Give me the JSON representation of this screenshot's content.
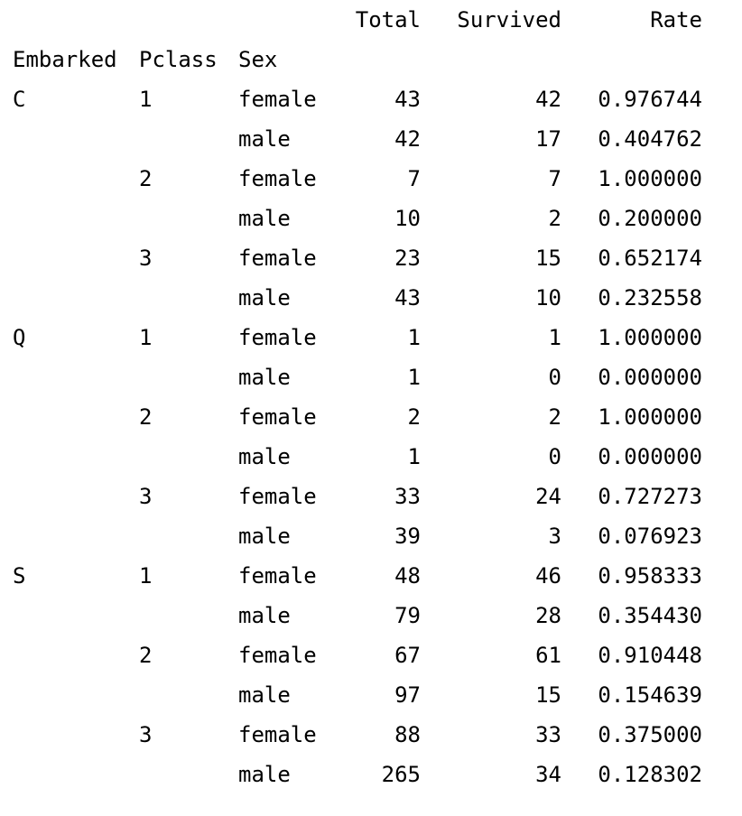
{
  "table": {
    "columns": [
      "Total",
      "Survived",
      "Rate"
    ],
    "index_names": [
      "Embarked",
      "Pclass",
      "Sex"
    ],
    "rows": [
      {
        "embarked": "C",
        "pclass": "1",
        "sex": "female",
        "total": "43",
        "survived": "42",
        "rate": "0.976744"
      },
      {
        "embarked": "",
        "pclass": "",
        "sex": "male",
        "total": "42",
        "survived": "17",
        "rate": "0.404762"
      },
      {
        "embarked": "",
        "pclass": "2",
        "sex": "female",
        "total": "7",
        "survived": "7",
        "rate": "1.000000"
      },
      {
        "embarked": "",
        "pclass": "",
        "sex": "male",
        "total": "10",
        "survived": "2",
        "rate": "0.200000"
      },
      {
        "embarked": "",
        "pclass": "3",
        "sex": "female",
        "total": "23",
        "survived": "15",
        "rate": "0.652174"
      },
      {
        "embarked": "",
        "pclass": "",
        "sex": "male",
        "total": "43",
        "survived": "10",
        "rate": "0.232558"
      },
      {
        "embarked": "Q",
        "pclass": "1",
        "sex": "female",
        "total": "1",
        "survived": "1",
        "rate": "1.000000"
      },
      {
        "embarked": "",
        "pclass": "",
        "sex": "male",
        "total": "1",
        "survived": "0",
        "rate": "0.000000"
      },
      {
        "embarked": "",
        "pclass": "2",
        "sex": "female",
        "total": "2",
        "survived": "2",
        "rate": "1.000000"
      },
      {
        "embarked": "",
        "pclass": "",
        "sex": "male",
        "total": "1",
        "survived": "0",
        "rate": "0.000000"
      },
      {
        "embarked": "",
        "pclass": "3",
        "sex": "female",
        "total": "33",
        "survived": "24",
        "rate": "0.727273"
      },
      {
        "embarked": "",
        "pclass": "",
        "sex": "male",
        "total": "39",
        "survived": "3",
        "rate": "0.076923"
      },
      {
        "embarked": "S",
        "pclass": "1",
        "sex": "female",
        "total": "48",
        "survived": "46",
        "rate": "0.958333"
      },
      {
        "embarked": "",
        "pclass": "",
        "sex": "male",
        "total": "79",
        "survived": "28",
        "rate": "0.354430"
      },
      {
        "embarked": "",
        "pclass": "2",
        "sex": "female",
        "total": "67",
        "survived": "61",
        "rate": "0.910448"
      },
      {
        "embarked": "",
        "pclass": "",
        "sex": "male",
        "total": "97",
        "survived": "15",
        "rate": "0.154639"
      },
      {
        "embarked": "",
        "pclass": "3",
        "sex": "female",
        "total": "88",
        "survived": "33",
        "rate": "0.375000"
      },
      {
        "embarked": "",
        "pclass": "",
        "sex": "male",
        "total": "265",
        "survived": "34",
        "rate": "0.128302"
      }
    ]
  }
}
